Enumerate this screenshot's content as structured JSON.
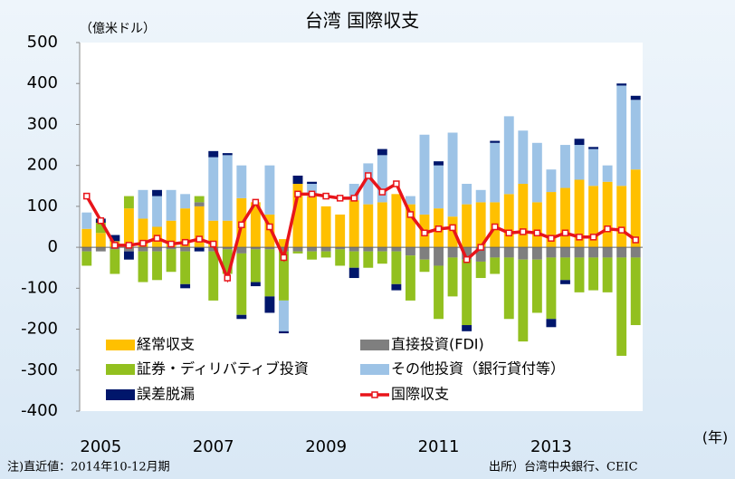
{
  "chart_data": {
    "type": "bar",
    "stacked": true,
    "title": "台湾 国際収支",
    "y_label": "（億米ドル）",
    "x_label": "(年)",
    "categories": [
      null,
      "2005",
      null,
      null,
      null,
      null,
      null,
      null,
      null,
      "2007",
      null,
      null,
      null,
      null,
      null,
      null,
      null,
      "2009",
      null,
      null,
      null,
      null,
      null,
      null,
      null,
      "2011",
      null,
      null,
      null,
      null,
      null,
      null,
      null,
      "2013",
      null,
      null,
      null,
      null,
      null,
      null
    ],
    "series": [
      {
        "name": "経常収支",
        "color": "#ffc000",
        "values": [
          45,
          35,
          15,
          95,
          70,
          50,
          65,
          95,
          100,
          65,
          65,
          120,
          110,
          80,
          20,
          155,
          125,
          100,
          80,
          115,
          105,
          110,
          130,
          105,
          80,
          95,
          75,
          105,
          110,
          110,
          130,
          155,
          110,
          135,
          145,
          165,
          150,
          160,
          150,
          190
        ]
      },
      {
        "name": "直接投資(FDI)",
        "color": "#7f7f7f",
        "values": [
          -10,
          -10,
          -5,
          -10,
          -10,
          -10,
          -5,
          -10,
          10,
          -10,
          -5,
          -15,
          -5,
          -5,
          -10,
          -10,
          -10,
          -10,
          -5,
          -10,
          -10,
          -10,
          -10,
          -20,
          -30,
          -45,
          -25,
          -30,
          -35,
          -25,
          -25,
          -30,
          -30,
          -25,
          -25,
          -25,
          -25,
          -25,
          -25,
          -25
        ]
      },
      {
        "name": "証券・ディリバティブ投資",
        "color": "#92c01f",
        "values": [
          -35,
          25,
          -60,
          30,
          -75,
          -70,
          -55,
          -80,
          15,
          -120,
          -60,
          -150,
          -80,
          -115,
          -120,
          -5,
          -20,
          -15,
          -40,
          -40,
          -40,
          -30,
          -80,
          -110,
          -30,
          -130,
          -95,
          -160,
          -40,
          -40,
          -150,
          -200,
          -130,
          -150,
          -55,
          -85,
          -80,
          -85,
          -240,
          -165
        ]
      },
      {
        "name": "その他投資（銀行貸付等）",
        "color": "#9dc3e6",
        "values": [
          40,
          0,
          0,
          0,
          70,
          75,
          75,
          35,
          0,
          155,
          160,
          80,
          0,
          120,
          -75,
          0,
          30,
          0,
          0,
          40,
          100,
          115,
          0,
          20,
          195,
          105,
          205,
          50,
          30,
          145,
          190,
          130,
          145,
          55,
          105,
          85,
          90,
          40,
          245,
          170
        ]
      },
      {
        "name": "誤差脱漏",
        "color": "#00166b",
        "values": [
          0,
          10,
          15,
          -20,
          0,
          15,
          0,
          -10,
          -10,
          15,
          5,
          -10,
          -10,
          -40,
          -5,
          20,
          5,
          0,
          0,
          -25,
          0,
          15,
          -15,
          0,
          0,
          10,
          0,
          -15,
          0,
          5,
          0,
          0,
          0,
          -20,
          -10,
          15,
          5,
          0,
          5,
          10
        ]
      },
      {
        "name": "国際収支",
        "color": "#e8141a",
        "type": "line",
        "values": [
          125,
          65,
          5,
          5,
          10,
          22,
          8,
          12,
          20,
          8,
          -75,
          55,
          110,
          50,
          -25,
          130,
          130,
          125,
          120,
          120,
          175,
          135,
          155,
          80,
          35,
          45,
          48,
          -30,
          0,
          50,
          35,
          38,
          35,
          22,
          35,
          25,
          25,
          45,
          42,
          18
        ]
      }
    ],
    "ylim": [
      -400,
      500
    ],
    "yticks": [
      -400,
      -300,
      -200,
      -100,
      0,
      100,
      200,
      300,
      400,
      500
    ],
    "grid": false,
    "notes": [
      "注)直近値：2014年10-12月期",
      "出所）台湾中央銀行、CEIC"
    ]
  }
}
